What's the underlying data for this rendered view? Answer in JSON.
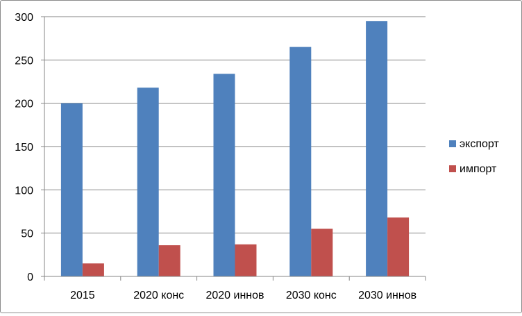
{
  "chart_data": {
    "type": "bar",
    "title": "",
    "xlabel": "",
    "ylabel": "",
    "categories": [
      "2015",
      "2020 конс",
      "2020 иннов",
      "2030 конс",
      "2030 иннов"
    ],
    "series": [
      {
        "name": "экспорт",
        "color": "#4F81BD",
        "values": [
          200,
          218,
          234,
          265,
          295
        ]
      },
      {
        "name": "импорт",
        "color": "#C0504D",
        "values": [
          15,
          36,
          37,
          55,
          68
        ]
      }
    ],
    "ylim": [
      0,
      300
    ],
    "yticks": [
      "0",
      "50",
      "100",
      "150",
      "200",
      "250",
      "300"
    ],
    "grid": true,
    "legend_position": "right"
  }
}
